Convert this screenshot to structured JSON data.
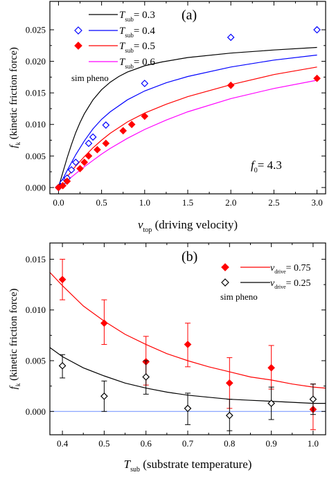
{
  "chart_data": [
    {
      "panel_label": "(a)",
      "type": "scatter",
      "xlabel": {
        "symbol": "v",
        "sub": "top",
        "rest": " (driving velocity)"
      },
      "ylabel": {
        "symbol": "f",
        "sub": "k",
        "rest": " (kinetic friction force)"
      },
      "xlim": [
        -0.1,
        3.1
      ],
      "ylim": [
        -0.001,
        0.0295
      ],
      "x_ticks": [
        0.0,
        0.5,
        1.0,
        1.5,
        2.0,
        2.5,
        3.0
      ],
      "x_tick_labels": [
        "0.0",
        "0.5",
        "1.0",
        "1.5",
        "2.0",
        "2.5",
        "3.0"
      ],
      "y_ticks": [
        0.0,
        0.005,
        0.01,
        0.015,
        0.02,
        0.025
      ],
      "y_tick_labels": [
        "0.000",
        "0.005",
        "0.010",
        "0.015",
        "0.020",
        "0.025"
      ],
      "grid": false,
      "legend_position": "top-left",
      "legend_note": "sim  pheno",
      "annotation": {
        "symbol": "f",
        "sub": "0",
        "rest": "= 4.3"
      },
      "series": [
        {
          "name": {
            "symbol": "T",
            "sub": "sub",
            "rest": "= 0.3"
          },
          "kind": "line",
          "color": "#000000",
          "x": [
            0.0,
            0.05,
            0.1,
            0.15,
            0.2,
            0.25,
            0.3,
            0.4,
            0.5,
            0.6,
            0.7,
            0.8,
            1.0,
            1.2,
            1.5,
            2.0,
            2.5,
            3.0
          ],
          "y": [
            0.0,
            0.0024,
            0.0047,
            0.0068,
            0.0087,
            0.0103,
            0.0117,
            0.0139,
            0.0155,
            0.0167,
            0.0176,
            0.0183,
            0.0193,
            0.0199,
            0.0206,
            0.0213,
            0.0218,
            0.0222
          ]
        },
        {
          "name": {
            "symbol": "T",
            "sub": "sub",
            "rest": "= 0.4"
          },
          "kind": "line",
          "color": "#0000ff",
          "x": [
            0.0,
            0.1,
            0.2,
            0.3,
            0.4,
            0.5,
            0.6,
            0.8,
            1.0,
            1.25,
            1.5,
            2.0,
            2.5,
            3.0
          ],
          "y": [
            0.0,
            0.0027,
            0.0052,
            0.0074,
            0.0093,
            0.0108,
            0.012,
            0.0139,
            0.0153,
            0.0166,
            0.0176,
            0.0191,
            0.0202,
            0.021
          ]
        },
        {
          "name": {
            "symbol": "T",
            "sub": "sub",
            "rest": "= 0.5"
          },
          "kind": "line",
          "color": "#ff0000",
          "x": [
            0.0,
            0.1,
            0.2,
            0.3,
            0.4,
            0.5,
            0.6,
            0.8,
            1.0,
            1.25,
            1.5,
            2.0,
            2.5,
            3.0
          ],
          "y": [
            0.0,
            0.0017,
            0.0034,
            0.0049,
            0.0063,
            0.0075,
            0.0086,
            0.0104,
            0.0118,
            0.0132,
            0.0144,
            0.0163,
            0.0179,
            0.0191
          ]
        },
        {
          "name": {
            "symbol": "T",
            "sub": "sub",
            "rest": "= 0.6"
          },
          "kind": "line",
          "color": "#ff00ff",
          "x": [
            0.0,
            0.1,
            0.2,
            0.3,
            0.4,
            0.5,
            0.6,
            0.8,
            1.0,
            1.25,
            1.5,
            2.0,
            2.5,
            3.0
          ],
          "y": [
            0.0,
            0.0011,
            0.0022,
            0.0033,
            0.0043,
            0.0053,
            0.0062,
            0.0078,
            0.0092,
            0.0107,
            0.012,
            0.0141,
            0.0157,
            0.017
          ]
        },
        {
          "name": "",
          "kind": "markers",
          "marker": "open-diamond",
          "color": "#0000ff",
          "x": [
            0.0,
            0.05,
            0.1,
            0.15,
            0.2,
            0.35,
            0.4,
            0.55,
            1.0,
            2.0,
            3.0
          ],
          "y": [
            0.0,
            0.0008,
            0.0015,
            0.0028,
            0.004,
            0.007,
            0.008,
            0.0099,
            0.0165,
            0.0238,
            0.025
          ]
        },
        {
          "name": "",
          "kind": "markers",
          "marker": "filled-diamond",
          "color": "#ff0000",
          "x": [
            0.0,
            0.05,
            0.1,
            0.25,
            0.3,
            0.35,
            0.45,
            0.55,
            0.75,
            0.85,
            1.0,
            2.0,
            3.0
          ],
          "y": [
            0.0,
            0.0003,
            0.001,
            0.003,
            0.004,
            0.005,
            0.006,
            0.007,
            0.009,
            0.01,
            0.0113,
            0.0162,
            0.0173
          ]
        }
      ]
    },
    {
      "panel_label": "(b)",
      "type": "scatter",
      "xlabel": {
        "symbol": "T",
        "sub": "sub",
        "rest": " (substrate temperature)"
      },
      "ylabel": {
        "symbol": "f",
        "sub": "k",
        "rest": " (kinetic friction force)"
      },
      "xlim": [
        0.37,
        1.03
      ],
      "ylim": [
        -0.0023,
        0.0166
      ],
      "x_ticks": [
        0.4,
        0.5,
        0.6,
        0.7,
        0.8,
        0.9,
        1.0
      ],
      "x_tick_labels": [
        "0.4",
        "0.5",
        "0.6",
        "0.7",
        "0.8",
        "0.9",
        "1.0"
      ],
      "y_ticks": [
        0.0,
        0.005,
        0.01,
        0.015
      ],
      "y_tick_labels": [
        "0.000",
        "0.005",
        "0.010",
        "0.015"
      ],
      "grid": false,
      "legend_position": "top-right",
      "legend_note": "sim  pheno",
      "baseline": {
        "y": 0.0,
        "color": "#6f8fff"
      },
      "series": [
        {
          "name": {
            "symbol": "v",
            "sub": "drive",
            "rest": "= 0.75"
          },
          "kind": "markers",
          "marker": "filled-diamond",
          "color": "#ff0000",
          "x": [
            0.4,
            0.5,
            0.6,
            0.7,
            0.8,
            0.9,
            1.0
          ],
          "y": [
            0.013,
            0.0087,
            0.0049,
            0.0066,
            0.0028,
            0.0043,
            0.0002
          ],
          "err_lo": [
            0.011,
            0.0066,
            0.0026,
            0.0044,
            0.0003,
            0.0022,
            -0.0018
          ],
          "err_hi": [
            0.015,
            0.011,
            0.0074,
            0.0087,
            0.0053,
            0.0065,
            0.0027
          ]
        },
        {
          "name": "",
          "kind": "line",
          "color": "#ff0000",
          "x": [
            0.37,
            0.4,
            0.45,
            0.5,
            0.55,
            0.6,
            0.65,
            0.7,
            0.75,
            0.8,
            0.85,
            0.9,
            0.95,
            1.0,
            1.03
          ],
          "y": [
            0.0137,
            0.0124,
            0.0104,
            0.0089,
            0.0076,
            0.0066,
            0.0057,
            0.005,
            0.0044,
            0.0039,
            0.0034,
            0.0031,
            0.0027,
            0.0024,
            0.0023
          ]
        },
        {
          "name": {
            "symbol": "v",
            "sub": "drive",
            "rest": "= 0.25"
          },
          "kind": "markers",
          "marker": "open-diamond",
          "color": "#000000",
          "x": [
            0.4,
            0.5,
            0.6,
            0.7,
            0.8,
            0.9,
            1.0
          ],
          "y": [
            0.0045,
            0.0015,
            0.0034,
            0.0003,
            -0.0004,
            0.0008,
            0.0012
          ],
          "err_lo": [
            0.0033,
            0.0,
            0.0017,
            -0.0013,
            -0.0019,
            -0.0008,
            -0.0003
          ],
          "err_hi": [
            0.0056,
            0.003,
            0.005,
            0.0018,
            0.0012,
            0.0024,
            0.0027
          ]
        },
        {
          "name": "",
          "kind": "line",
          "color": "#000000",
          "x": [
            0.37,
            0.4,
            0.45,
            0.5,
            0.55,
            0.6,
            0.65,
            0.7,
            0.75,
            0.8,
            0.85,
            0.9,
            0.95,
            1.0,
            1.03
          ],
          "y": [
            0.0063,
            0.0054,
            0.0043,
            0.0035,
            0.0028,
            0.0023,
            0.0019,
            0.0016,
            0.0014,
            0.0012,
            0.0011,
            0.001,
            0.0009,
            0.0008,
            0.0008
          ]
        }
      ]
    }
  ]
}
